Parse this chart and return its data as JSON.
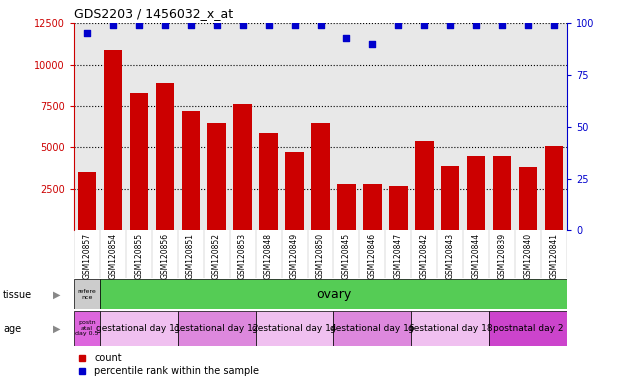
{
  "title": "GDS2203 / 1456032_x_at",
  "samples": [
    "GSM120857",
    "GSM120854",
    "GSM120855",
    "GSM120856",
    "GSM120851",
    "GSM120852",
    "GSM120853",
    "GSM120848",
    "GSM120849",
    "GSM120850",
    "GSM120845",
    "GSM120846",
    "GSM120847",
    "GSM120842",
    "GSM120843",
    "GSM120844",
    "GSM120839",
    "GSM120840",
    "GSM120841"
  ],
  "counts": [
    3500,
    10900,
    8300,
    8900,
    7200,
    6500,
    7600,
    5900,
    4700,
    6500,
    2800,
    2800,
    2700,
    5400,
    3900,
    4500,
    4500,
    3800,
    5100
  ],
  "percentiles": [
    95,
    99,
    99,
    99,
    99,
    99,
    99,
    99,
    99,
    99,
    93,
    90,
    99,
    99,
    99,
    99,
    99,
    99,
    99
  ],
  "bar_color": "#cc0000",
  "dot_color": "#0000cc",
  "ylim_left": [
    0,
    12500
  ],
  "ylim_right": [
    0,
    100
  ],
  "yticks_left": [
    2500,
    5000,
    7500,
    10000,
    12500
  ],
  "yticks_right": [
    0,
    25,
    50,
    75,
    100
  ],
  "tissue_row": {
    "reference_label": "refere\nnce",
    "reference_color": "#cccccc",
    "ovary_label": "ovary",
    "ovary_color": "#55cc55"
  },
  "age_groups": [
    {
      "label": "postn\natal\nday 0.5",
      "color": "#dd66dd",
      "count": 1
    },
    {
      "label": "gestational day 11",
      "color": "#f0c0f0",
      "count": 3
    },
    {
      "label": "gestational day 12",
      "color": "#dd88dd",
      "count": 3
    },
    {
      "label": "gestational day 14",
      "color": "#f0c0f0",
      "count": 3
    },
    {
      "label": "gestational day 16",
      "color": "#dd88dd",
      "count": 3
    },
    {
      "label": "gestational day 18",
      "color": "#f0c0f0",
      "count": 3
    },
    {
      "label": "postnatal day 2",
      "color": "#cc44cc",
      "count": 3
    }
  ],
  "legend_count_label": "count",
  "legend_pct_label": "percentile rank within the sample",
  "bg_color": "#e8e8e8",
  "grid_color": "#000000",
  "title_color": "#000000",
  "left_axis_color": "#cc0000",
  "right_axis_color": "#0000cc"
}
